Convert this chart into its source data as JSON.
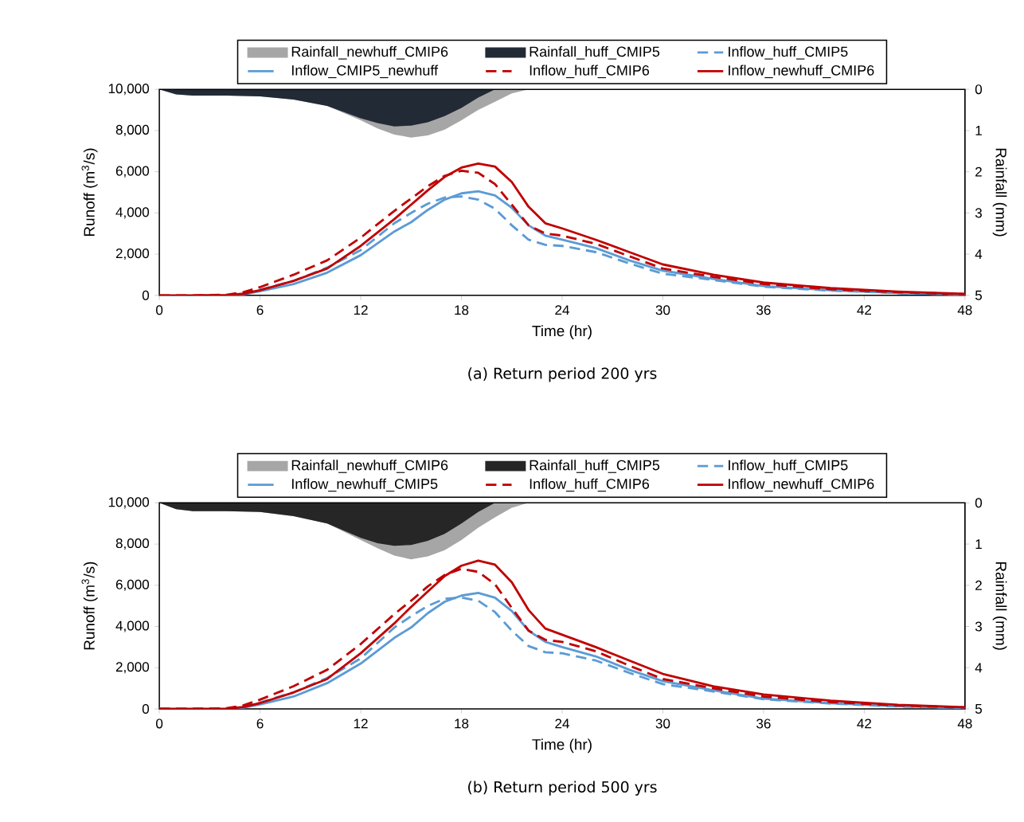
{
  "chart_data": [
    {
      "type": "line",
      "title": "(a) Return period 200 yrs",
      "xlabel": "Time (hr)",
      "ylabel": "Runoff (m$^{3}$/s)",
      "y2label": "Rainfall (mm)",
      "xlim": [
        0,
        48
      ],
      "xticks": [
        0,
        6,
        12,
        18,
        24,
        30,
        36,
        42,
        48
      ],
      "ylim": [
        0,
        10000
      ],
      "yticks": [
        0,
        {
          "value": 2000,
          "label": "2,000"
        },
        {
          "value": 4000,
          "label": "4,000"
        },
        {
          "value": 6000,
          "label": "6,000"
        },
        {
          "value": 8000,
          "label": "8,000"
        },
        {
          "value": 10000,
          "label": "10,000"
        }
      ],
      "y2lim": [
        5,
        0
      ],
      "y2ticks": [
        0,
        1,
        2,
        3,
        4,
        5
      ],
      "legend": "top",
      "marker": "none",
      "x": [
        0,
        2,
        4,
        5,
        6,
        8,
        10,
        12,
        14,
        15,
        16,
        17,
        18,
        19,
        20,
        21,
        22,
        23,
        24,
        26,
        28,
        30,
        33,
        36,
        40,
        44,
        48
      ],
      "series": [
        {
          "name": "Rainfall_newhuff_CMIP6",
          "type": "area",
          "axis": "y2",
          "color": "#a6a6a6",
          "x": [
            0,
            1,
            2,
            4,
            6,
            8,
            10,
            12,
            13,
            14,
            15,
            16,
            17,
            18,
            19,
            20,
            21,
            22
          ],
          "values": [
            0,
            0.12,
            0.15,
            0.15,
            0.17,
            0.25,
            0.4,
            0.75,
            0.95,
            1.1,
            1.17,
            1.12,
            0.98,
            0.75,
            0.5,
            0.3,
            0.1,
            0
          ]
        },
        {
          "name": "Rainfall_huff_CMIP5",
          "type": "area",
          "axis": "y2",
          "color": "#222a35",
          "x": [
            0,
            1,
            2,
            4,
            6,
            8,
            10,
            12,
            13,
            14,
            15,
            16,
            17,
            18,
            19,
            20,
            21,
            22
          ],
          "values": [
            0,
            0.12,
            0.15,
            0.15,
            0.17,
            0.25,
            0.4,
            0.7,
            0.82,
            0.9,
            0.88,
            0.8,
            0.65,
            0.45,
            0.2,
            0,
            0,
            0
          ]
        },
        {
          "name": "Inflow_huff_CMIP5",
          "line_style": "dashed",
          "color": "#5b9bd5",
          "values": [
            null,
            null,
            0,
            80,
            280,
            700,
            1350,
            2200,
            3500,
            4000,
            4450,
            4750,
            4800,
            4650,
            4200,
            3400,
            2700,
            2450,
            2400,
            2100,
            1550,
            1050,
            750,
            420,
            230,
            110,
            40
          ]
        },
        {
          "name": "Inflow_CMIP5_newhuff",
          "line_style": "solid",
          "color": "#5b9bd5",
          "values": [
            null,
            null,
            0,
            50,
            200,
            550,
            1100,
            1950,
            3100,
            3550,
            4150,
            4650,
            4950,
            5050,
            4850,
            4250,
            3400,
            2900,
            2700,
            2300,
            1700,
            1200,
            800,
            450,
            250,
            120,
            40
          ]
        },
        {
          "name": "Inflow_huff_CMIP6",
          "line_style": "dashed",
          "color": "#c00000",
          "values": [
            0,
            0,
            30,
            150,
            400,
            1000,
            1700,
            2800,
            4100,
            4700,
            5300,
            5800,
            6050,
            5950,
            5400,
            4400,
            3400,
            3000,
            2900,
            2500,
            1900,
            1300,
            900,
            550,
            300,
            150,
            60
          ]
        },
        {
          "name": "Inflow_newhuff_CMIP6",
          "line_style": "solid",
          "color": "#c00000",
          "values": [
            0,
            0,
            10,
            80,
            250,
            700,
            1300,
            2400,
            3700,
            4400,
            5100,
            5750,
            6200,
            6400,
            6250,
            5500,
            4300,
            3500,
            3250,
            2700,
            2100,
            1500,
            1000,
            620,
            350,
            180,
            70
          ]
        }
      ]
    },
    {
      "type": "line",
      "title": "(b) Return period 500 yrs",
      "xlabel": "Time (hr)",
      "ylabel": "Runoff (m$^{3}$/s)",
      "y2label": "Rainfall (mm)",
      "xlim": [
        0,
        48
      ],
      "xticks": [
        0,
        6,
        12,
        18,
        24,
        30,
        36,
        42,
        48
      ],
      "ylim": [
        0,
        10000
      ],
      "yticks": [
        0,
        {
          "value": 2000,
          "label": "2,000"
        },
        {
          "value": 4000,
          "label": "4,000"
        },
        {
          "value": 6000,
          "label": "6,000"
        },
        {
          "value": 8000,
          "label": "8,000"
        },
        {
          "value": 10000,
          "label": "10,000"
        }
      ],
      "y2lim": [
        5,
        0
      ],
      "y2ticks": [
        0,
        1,
        2,
        3,
        4,
        5
      ],
      "legend": "top",
      "marker": "none",
      "x": [
        0,
        2,
        4,
        5,
        6,
        8,
        10,
        12,
        14,
        15,
        16,
        17,
        18,
        19,
        20,
        21,
        22,
        23,
        24,
        26,
        28,
        30,
        33,
        36,
        40,
        44,
        48
      ],
      "series": [
        {
          "name": "Rainfall_newhuff_CMIP6",
          "type": "area",
          "axis": "y2",
          "color": "#a6a6a6",
          "x": [
            0,
            1,
            2,
            4,
            6,
            8,
            10,
            12,
            13,
            14,
            15,
            16,
            17,
            18,
            19,
            20,
            21,
            22
          ],
          "values": [
            0,
            0.15,
            0.2,
            0.2,
            0.22,
            0.32,
            0.5,
            0.9,
            1.1,
            1.28,
            1.37,
            1.3,
            1.15,
            0.9,
            0.6,
            0.35,
            0.12,
            0
          ]
        },
        {
          "name": "Rainfall_huff_CMIP5",
          "type": "area",
          "axis": "y2",
          "color": "#262626",
          "x": [
            0,
            1,
            2,
            4,
            6,
            8,
            10,
            12,
            13,
            14,
            15,
            16,
            17,
            18,
            19,
            20,
            21,
            22
          ],
          "values": [
            0,
            0.15,
            0.2,
            0.2,
            0.22,
            0.32,
            0.5,
            0.85,
            0.98,
            1.04,
            1.02,
            0.92,
            0.75,
            0.5,
            0.22,
            0,
            0,
            0
          ]
        },
        {
          "name": "Inflow_huff_CMIP5",
          "line_style": "dashed",
          "color": "#5b9bd5",
          "values": [
            0,
            0,
            0,
            90,
            310,
            800,
            1500,
            2450,
            3950,
            4500,
            5000,
            5350,
            5400,
            5250,
            4700,
            3800,
            3050,
            2750,
            2700,
            2350,
            1750,
            1200,
            850,
            470,
            260,
            120,
            40
          ]
        },
        {
          "name": "Inflow_newhuff_CMIP5",
          "line_style": "solid",
          "color": "#5b9bd5",
          "values": [
            null,
            null,
            0,
            60,
            220,
            600,
            1250,
            2200,
            3450,
            3950,
            4650,
            5200,
            5500,
            5630,
            5400,
            4750,
            3800,
            3250,
            3000,
            2550,
            1900,
            1350,
            900,
            500,
            280,
            130,
            50
          ]
        },
        {
          "name": "Inflow_huff_CMIP6",
          "line_style": "dashed",
          "color": "#c00000",
          "values": [
            0,
            0,
            30,
            170,
            450,
            1100,
            1900,
            3150,
            4600,
            5250,
            5950,
            6500,
            6800,
            6650,
            6050,
            4900,
            3800,
            3350,
            3250,
            2800,
            2100,
            1450,
            1000,
            600,
            330,
            170,
            70
          ]
        },
        {
          "name": "Inflow_newhuff_CMIP6",
          "line_style": "solid",
          "color": "#c00000",
          "values": [
            0,
            0,
            10,
            90,
            280,
            800,
            1450,
            2700,
            4150,
            4950,
            5700,
            6450,
            6950,
            7200,
            7000,
            6150,
            4800,
            3900,
            3600,
            3000,
            2350,
            1700,
            1100,
            700,
            400,
            200,
            80
          ]
        }
      ]
    }
  ]
}
